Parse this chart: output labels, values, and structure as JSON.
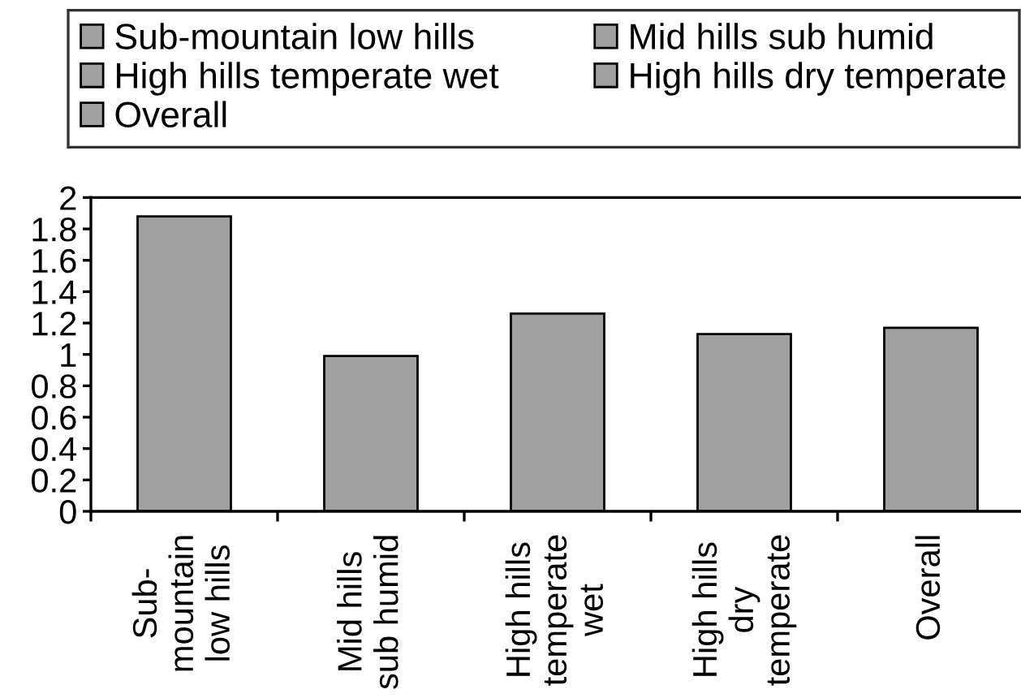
{
  "chart_data": {
    "type": "bar",
    "categories": [
      "Sub-mountain low hills",
      "Mid hills sub humid",
      "High hills temperate wet",
      "High hills dry temperate",
      "Overall"
    ],
    "series": [
      {
        "name": "Sub-mountain low hills",
        "color": "#a0a0a0",
        "values": [
          1.88,
          null,
          null,
          null,
          null
        ]
      },
      {
        "name": "Mid hills sub humid",
        "color": "#a0a0a0",
        "values": [
          null,
          0.99,
          null,
          null,
          null
        ]
      },
      {
        "name": "High hills temperate wet",
        "color": "#a0a0a0",
        "values": [
          null,
          null,
          1.26,
          null,
          null
        ]
      },
      {
        "name": "High hills dry temperate",
        "color": "#a0a0a0",
        "values": [
          null,
          null,
          null,
          1.13,
          null
        ]
      },
      {
        "name": "Overall",
        "color": "#a0a0a0",
        "values": [
          null,
          null,
          null,
          null,
          1.17
        ]
      }
    ],
    "ylim": [
      0,
      2
    ],
    "yticks": [
      0,
      0.2,
      0.4,
      0.6,
      0.8,
      1,
      1.2,
      1.4,
      1.6,
      1.8,
      2
    ],
    "legend": "top",
    "grid": false
  }
}
